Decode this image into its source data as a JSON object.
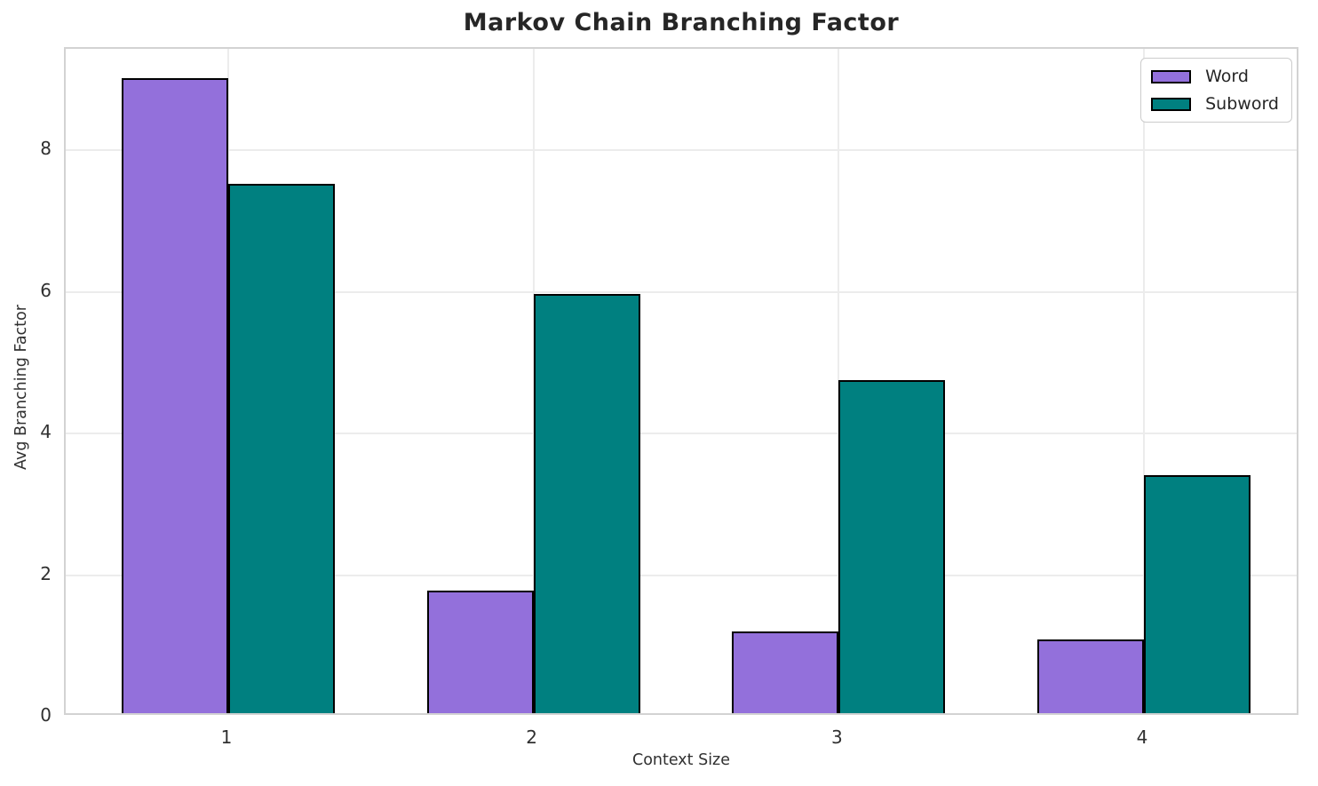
{
  "chart_data": {
    "type": "bar",
    "title": "Markov Chain Branching Factor",
    "xlabel": "Context Size",
    "ylabel": "Avg Branching Factor",
    "categories": [
      "1",
      "2",
      "3",
      "4"
    ],
    "series": [
      {
        "name": "Word",
        "color": "#9370DB",
        "values": [
          8.97,
          1.73,
          1.15,
          1.04
        ]
      },
      {
        "name": "Subword",
        "color": "#008080",
        "values": [
          7.47,
          5.92,
          4.7,
          3.36
        ]
      }
    ],
    "ylim": [
      0,
      9.43
    ],
    "yticks": [
      0,
      2,
      4,
      6,
      8
    ],
    "grid": true,
    "legend_position": "upper right",
    "bar_edge_color": "#000000",
    "gridline_color": "#ececec",
    "spine_color": "#d3d3d3",
    "text_color": "#303030",
    "title_color": "#262626",
    "background_color": "#ffffff"
  }
}
